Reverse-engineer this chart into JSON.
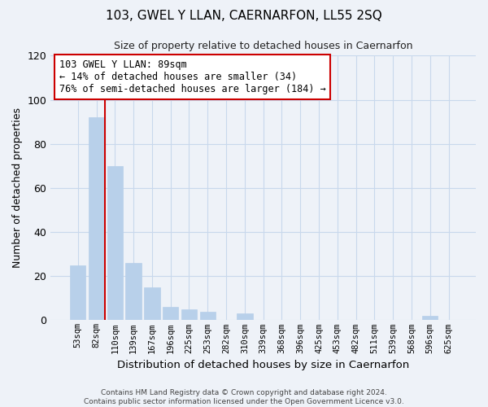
{
  "title": "103, GWEL Y LLAN, CAERNARFON, LL55 2SQ",
  "subtitle": "Size of property relative to detached houses in Caernarfon",
  "xlabel": "Distribution of detached houses by size in Caernarfon",
  "ylabel": "Number of detached properties",
  "bar_labels": [
    "53sqm",
    "82sqm",
    "110sqm",
    "139sqm",
    "167sqm",
    "196sqm",
    "225sqm",
    "253sqm",
    "282sqm",
    "310sqm",
    "339sqm",
    "368sqm",
    "396sqm",
    "425sqm",
    "453sqm",
    "482sqm",
    "511sqm",
    "539sqm",
    "568sqm",
    "596sqm",
    "625sqm"
  ],
  "bar_values": [
    25,
    92,
    70,
    26,
    15,
    6,
    5,
    4,
    0,
    3,
    0,
    0,
    0,
    0,
    0,
    0,
    0,
    0,
    0,
    2,
    0
  ],
  "bar_color": "#b8d0ea",
  "bar_edgecolor": "#b8d0ea",
  "vline_color": "#cc0000",
  "annotation_text": "103 GWEL Y LLAN: 89sqm\n← 14% of detached houses are smaller (34)\n76% of semi-detached houses are larger (184) →",
  "annotation_box_edgecolor": "#cc0000",
  "annotation_box_facecolor": "#ffffff",
  "ylim": [
    0,
    120
  ],
  "yticks": [
    0,
    20,
    40,
    60,
    80,
    100,
    120
  ],
  "grid_color": "#c8d8ec",
  "footer_text": "Contains HM Land Registry data © Crown copyright and database right 2024.\nContains public sector information licensed under the Open Government Licence v3.0.",
  "bg_color": "#eef2f8",
  "plot_bg_color": "#eef2f8"
}
